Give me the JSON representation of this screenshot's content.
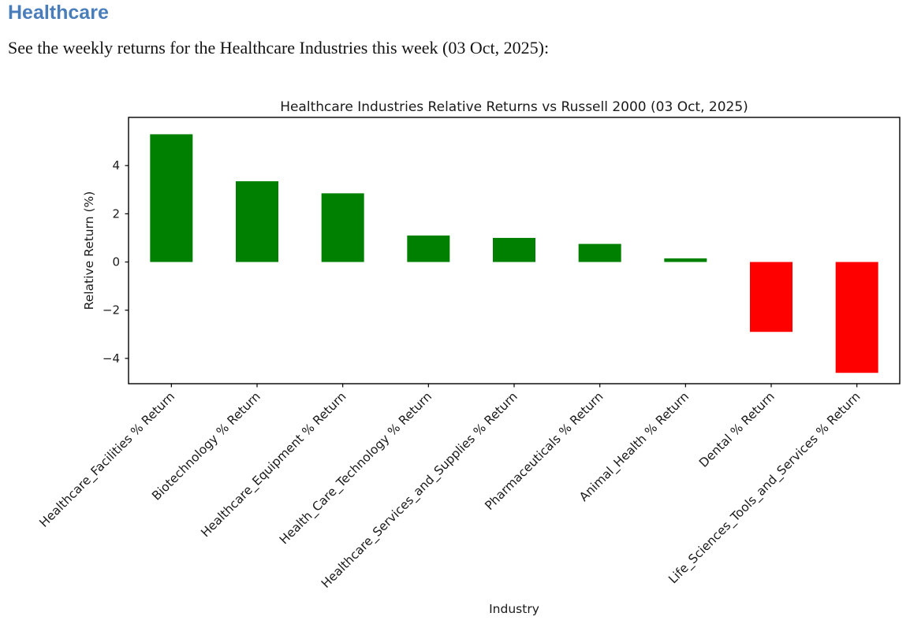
{
  "page": {
    "heading": "Healthcare",
    "subtitle": "See the weekly returns for the Healthcare Industries this week (03 Oct, 2025):",
    "heading_color": "#4a7ebb"
  },
  "chart_data": {
    "type": "bar",
    "title": "Healthcare Industries Relative Returns vs Russell 2000 (03 Oct, 2025)",
    "xlabel": "Industry",
    "ylabel": "Relative Return (%)",
    "categories": [
      "Healthcare_Facilities % Return",
      "Biotechnology % Return",
      "Healthcare_Equipment % Return",
      "Health_Care_Technology % Return",
      "Healthcare_Services_and_Supplies % Return",
      "Pharmaceuticals % Return",
      "Animal_Health % Return",
      "Dental % Return",
      "Life_Sciences_Tools_and_Services % Return"
    ],
    "values": [
      5.3,
      3.35,
      2.85,
      1.1,
      1.0,
      0.75,
      0.15,
      -2.9,
      -4.6
    ],
    "positive_color": "#008000",
    "negative_color": "#ff0000",
    "yticks": [
      -4,
      -2,
      0,
      2,
      4
    ],
    "ylim": [
      -5.05,
      6.0
    ],
    "x_tick_rotation": 45,
    "grid": false,
    "legend": "none"
  }
}
